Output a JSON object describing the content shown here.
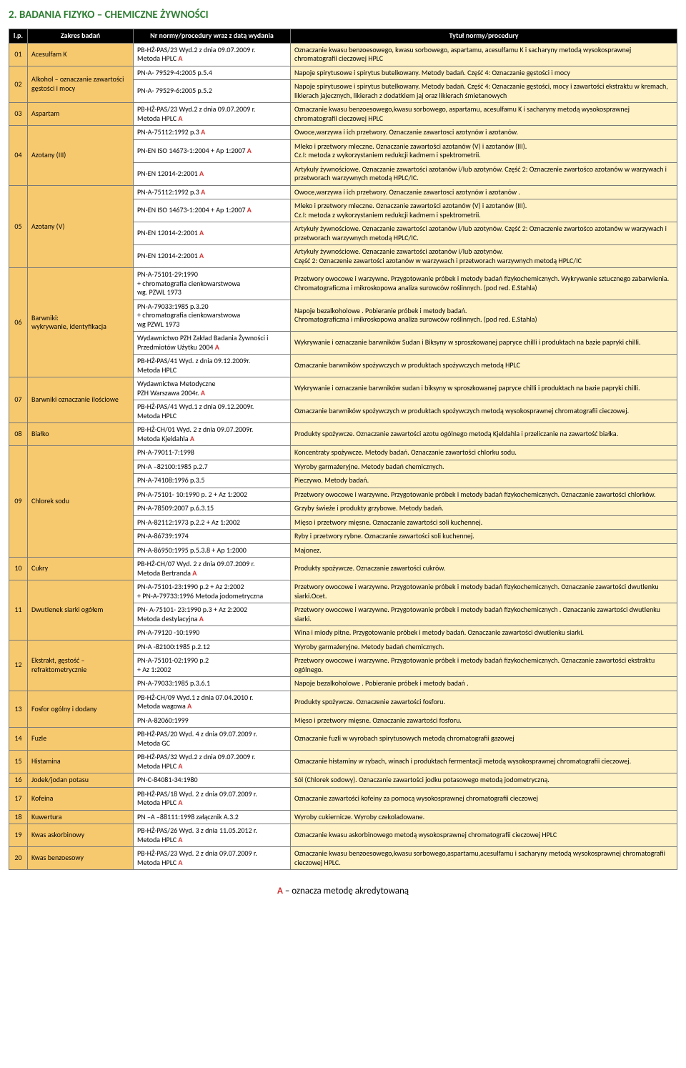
{
  "pageTitle": "2. BADANIA FIZYKO – CHEMICZNE ŻYWNOŚCI",
  "header": {
    "lp": "l.p.",
    "zakres": "Zakres badań",
    "nr": "Nr normy/procedury wraz z datą wydania",
    "tytul": "Tytuł normy/procedury"
  },
  "footer": "– oznacza metodę akredytowaną",
  "footerA": "A ",
  "rows": [
    {
      "lp": "01",
      "zakres": "Acesulfam K",
      "nr": "PB-HŻ-PAS/23  Wyd.2  z dnia 09.07.2009 r.\nMetoda  HPLC  ",
      "A": true,
      "tytul": "Oznaczanie kwasu benzoesowego, kwasu sorbowego, aspartamu, acesulfamu K i sacharyny metodą wysokosprawnej chromatografii cieczowej HPLC"
    },
    {
      "lp": "02",
      "lpRs": 2,
      "zakres": "Alkohol – oznaczanie zawartości gęstości i  mocy",
      "zakresRs": 2,
      "nr": "PN-A- 79529-4:2005 p.5.4",
      "A": false,
      "tytul": "Napoje spirytusowe i spirytus butelkowany. Metody badań. Część 4: Oznaczanie gęstości i mocy"
    },
    {
      "nr": "PN-A- 79529-6:2005 p.5.2",
      "A": false,
      "tytul": "Napoje spirytusowe i spirytus butelkowany. Metody badań. Część 4: Oznaczanie gęstości, mocy i zawartości ekstraktu w kremach, likierach jajecznych, likierach z dodatkiem jaj oraz likierach śmietanowych"
    },
    {
      "lp": "03",
      "zakres": "Aspartam",
      "nr": "PB-HŻ-PAS/23  Wyd.2 z dnia  09.07.2009 r.\nMetoda  HPLC  ",
      "A": true,
      "tytul": "Oznaczanie kwasu benzoesowego,kwasu sorbowego, aspartamu, acesulfamu K i sacharyny metodą wysokosprawnej chromatografii cieczowej HPLC"
    },
    {
      "lp": "04",
      "lpRs": 3,
      "zakres": "Azotany (III)",
      "zakresRs": 3,
      "nr": "PN-A-75112:1992 p.3  ",
      "A": true,
      "tytul": "Owoce,warzywa i ich przetwory. Oznaczanie zawartosci azotynów i azotanów."
    },
    {
      "nr": "PN-EN ISO 14673-1:2004 + Ap 1:2007  ",
      "A": true,
      "tytul": "Mleko i przetwory mleczne. Oznaczanie zawartości azotanów (V) i azotanów (III).\nCz.I: metoda z wykorzystaniem redukcji kadmem i spektrometrii."
    },
    {
      "nr": "PN-EN 12014-2:2001  ",
      "A": true,
      "tytul": "Artykuły żywnościowe. Oznaczanie  zawartości azotanów i/lub azotynów. Część 2: Oznaczenie zwartośco azotanów w warzywach i przetworach warzywnych metodą HPLC/IC."
    },
    {
      "lp": "05",
      "lpRs": 4,
      "zakres": "Azotany (V)",
      "zakresRs": 4,
      "nr": "PN-A-75112:1992 p.3  ",
      "A": true,
      "tytul": "Owoce,warzywa i ich przetwory. Oznaczanie zawartosci azotynów i azotanów ."
    },
    {
      "nr": "PN-EN ISO 14673-1:2004 + Ap 1:2007  ",
      "A": true,
      "tytul": "Mleko i przetwory mleczne. Oznaczanie zawartości azotanów (V) i azotanów (III).\nCz.I: metoda z wykorzystaniem redukcji kadmem i spektrometrii."
    },
    {
      "nr": "PN-EN 12014-2:2001  ",
      "A": true,
      "tytul": "Artykuły żywnościowe. Oznaczanie  zawartości azotanów i/lub azotynów. Część 2: Oznaczenie zwartośco azotanów w warzywach i przetworach warzywnych metodą HPLC/IC."
    },
    {
      "nr": "PN-EN 12014-2:2001  ",
      "A": true,
      "tytul": "Artykuły żywnościowe. Oznaczanie  zawartości azotanów i/lub azotynów.\nCzęść 2: Oznaczenie zawartości azotanów w warzywach i przetworach warzywnych metodą HPLC/IC"
    },
    {
      "lp": "06",
      "lpRs": 4,
      "zakres": "Barwniki:\nwykrywanie, identyfikacja",
      "zakresRs": 4,
      "nr": "PN-A-75101-29:1990\n + chromatografia cienkowarstwowa\nwg. PZWL 1973",
      "A": false,
      "tytul": "Przetwory owocowe i warzywne. Przygotowanie próbek i metody badań fizykochemicznych. Wykrywanie sztucznego zabarwienia.\nChromatograficzna i mikroskopowa analiza surowców roślinnych. (pod  red.  E.Stahla)"
    },
    {
      "nr": "PN-A-79033:1985 p.3.20\n+ chromatografia cienkowarstwowa\nwg  PZWL 1973",
      "A": false,
      "tytul": "Napoje bezalkoholowe . Pobieranie próbek i metody badań.\nChromatograficzna i mikroskopowa analiza surowców roślinnych. (pod  red.  E.Stahla)"
    },
    {
      "nr": "Wydawnictwo PZH Zakład Badania Żywności i\nPrzedmiotów Użytku  2004   ",
      "A": true,
      "tytul": "Wykrywanie i oznaczanie barwników Sudan i Biksyny w sproszkowanej papryce chilli i produktach na bazie papryki chilli."
    },
    {
      "nr": "PB-HŻ-PAS/41  Wyd. z dnia 09.12.2009r.\nMetoda  HPLC",
      "A": false,
      "tytul": "Oznaczanie  barwników spożywczych w produktach spożywczych metodą HPLC"
    },
    {
      "lp": "07",
      "lpRs": 2,
      "zakres": "Barwniki oznaczanie ilościowe",
      "zakresRs": 2,
      "nr": "Wydawnictwa Metodyczne\nPZH Warszawa 2004r.   ",
      "A": true,
      "tytul": "Wykrywanie i oznaczanie barwników sudan i biksyny w sproszkowanej papryce chilli i produktach na bazie papryki chilli."
    },
    {
      "nr": "PB-HŻ-PAS/41  Wyd.1 z dnia 09.12.2009r.\nMetoda  HPLC",
      "A": false,
      "tytul": "Oznaczanie  barwników spożywczych w produktach spożywczych   metodą   wysokosprawnej chromatografii cieczowej."
    },
    {
      "lp": "08",
      "zakres": "Białko",
      "nr": "PB-HŻ-CH/01   Wyd. 2 z dnia 09.07.2009r.\nMetoda Kjeldahla  ",
      "A": true,
      "tytul": "Produkty spożywcze. Oznaczanie zawartości azotu ogólnego metodą Kjeldahla i przeliczanie na zawartość białka."
    },
    {
      "lp": "09",
      "lpRs": 8,
      "zakres": "Chlorek sodu",
      "zakresRs": 8,
      "nr": "PN-A-79011-7:1998",
      "A": false,
      "tytul": "Koncentraty spożywcze. Metody badań. Oznaczanie zawartości  chlorku sodu."
    },
    {
      "nr": "PN-A –82100:1985 p.2.7",
      "A": false,
      "tytul": "Wyroby garmażeryjne. Metody badań chemicznych."
    },
    {
      "nr": "PN-A-74108:1996  p.3.5",
      "A": false,
      "tytul": "Pieczywo. Metody badań."
    },
    {
      "nr": "PN-A-75101- 10:1990  p. 2 + Az 1:2002",
      "A": false,
      "tytul": "Przetwory owocowe i warzywne. Przygotowanie próbek i metody badań fizykochemicznych. Oznaczanie zawartości chlorków."
    },
    {
      "nr": "PN-A-78509:2007  p.6.3.15",
      "A": false,
      "tytul": "Grzyby świeże i produkty grzybowe. Metody badań."
    },
    {
      "nr": "PN-A-82112:1973  p.2.2 + Az 1:2002",
      "A": false,
      "tytul": "Mięso i przetwory mięsne. Oznaczanie zawartości soli kuchennej."
    },
    {
      "nr": "PN-A-86739:1974",
      "A": false,
      "tytul": "Ryby i przetwory rybne. Oznaczanie zawartości soli kuchennej."
    },
    {
      "nr": "PN-A-86950:1995 p.5.3.8 + Ap 1:2000",
      "A": false,
      "tytul": "Majonez."
    },
    {
      "lp": "10",
      "zakres": "Cukry",
      "nr": "PB-HŻ-CH/07  Wyd. 2 z dnia 09.07.2009 r.\nMetoda Bertranda  ",
      "A": true,
      "tytul": "Produkty spożywcze. Oznaczanie zawartości cukrów."
    },
    {
      "lp": "11",
      "lpRs": 3,
      "zakres": "Dwutlenek siarki ogółem",
      "zakresRs": 3,
      "nr": "PN-A-75101-23:1990 p.2  + Az 2:2002\n+ PN-A-79733:1996   Metoda jodometryczna",
      "A": false,
      "tytul": "Przetwory owocowe i warzywne. Przygotowanie próbek i metody badań fizykochemicznych. Oznaczanie zawartości dwutlenku siarki.Ocet."
    },
    {
      "nr": "PN- A-75101- 23:1990 p.3  + Az 2:2002\nMetoda destylacyjna  ",
      "A": true,
      "tytul": "Przetwory owocowe i warzywne. Przygotowanie próbek i metody badań fizykochemicznych . Oznaczanie zawartości dwutlenku siarki."
    },
    {
      "nr": "PN-A-79120 -10:1990",
      "A": false,
      "tytul": "Wina i miody pitne. Przygotowanie próbek i metody badań. Oznaczanie zawartości dwutlenku siarki."
    },
    {
      "lp": "12",
      "lpRs": 3,
      "zakres": "Ekstrakt, gęstość – refraktometrycznie",
      "zakresRs": 3,
      "nr": "PN-A -82100:1985 p.2.12",
      "A": false,
      "tytul": "Wyroby garmażeryjne. Metody badań chemicznych."
    },
    {
      "nr": "PN-A-75101-02:1990  p.2\n+ Az 1:2002",
      "A": false,
      "tytul": "Przetwory owocowe i warzywne. Przygotowanie próbek i metody badań fizykochemicznych. Oznaczanie zawartości ekstraktu ogólnego."
    },
    {
      "nr": "PN-A-79033:1985  p.3.6.1",
      "A": false,
      "tytul": "Napoje bezalkoholowe . Pobieranie próbek i metody badań ."
    },
    {
      "lp": "13",
      "lpRs": 2,
      "zakres": "Fosfor ogólny i dodany",
      "zakresRs": 2,
      "nr": "PB-HŻ-CH/09  Wyd.1 z dnia 07.04.2010 r.\nMetoda wagowa  ",
      "A": true,
      "tytul": "Produkty spożywcze. Oznaczenie zawartości fosforu."
    },
    {
      "nr": "PN-A-82060:1999",
      "A": false,
      "tytul": "Mięso i przetwory mięsne. Oznaczanie zawartości fosforu."
    },
    {
      "lp": "14",
      "zakres": "Fuzle",
      "nr": "PB-HŻ-PAS/20  Wyd. 4 z dnia  09.07.2009 r.\nMetoda GC",
      "A": false,
      "tytul": "Oznaczanie fuzli w wyrobach spirytusowych metodą chromatografii gazowej"
    },
    {
      "lp": "15",
      "zakres": "Histamina",
      "nr": "PB-HŻ-PAS/32   Wyd.2  z dnia 09.07.2009 r.\nMetoda  HPLC  ",
      "A": true,
      "tytul": "Oznaczanie histaminy w rybach, winach i produktach fermentacji metodą wysokosprawnej chromatografii cieczowej."
    },
    {
      "lp": "16",
      "zakres": "Jodek/jodan potasu",
      "nr": "PN-C-84081-34:1980",
      "A": false,
      "tytul": "Sól (Chlorek sodowy). Oznaczanie zawartości jodku potasowego metodą jodometryczną."
    },
    {
      "lp": "17",
      "zakres": "Kofeina",
      "nr": "PB-HŻ-PAS/18  Wyd. 2 z dnia  09.07.2009 r.\nMetoda  HPLC  ",
      "A": true,
      "tytul": "Oznaczanie zawartości kofeiny za pomocą wysokosprawnej chromatografii cieczowej"
    },
    {
      "lp": "18",
      "zakres": "Kuwertura",
      "nr": "PN –A –88111:1998 załącznik A.3.2",
      "A": false,
      "tytul": "Wyroby cukiernicze. Wyroby czekoladowane."
    },
    {
      "lp": "19",
      "zakres": "Kwas askorbinowy",
      "nr": "PB-HŻ-PAS/26   Wyd. 3 z dnia 11.05.2012 r.\nMetoda  HPLC  ",
      "A": true,
      "tytul": "Oznaczanie kwasu askorbinowego metodą wysokosprawnej chromatografii cieczowej HPLC"
    },
    {
      "lp": "20",
      "zakres": "Kwas benzoesowy",
      "nr": "PB-HŻ-PAS/23  Wyd. 2 z dnia  09.07.2009 r.\nMetoda  HPLC  ",
      "A": true,
      "tytul": "Oznaczanie kwasu benzoesowego,kwasu sorbowego,aspartamu,acesulfamu i sacharyny metodą wysokosprawnej chromatografii cieczowej HPLC."
    }
  ]
}
